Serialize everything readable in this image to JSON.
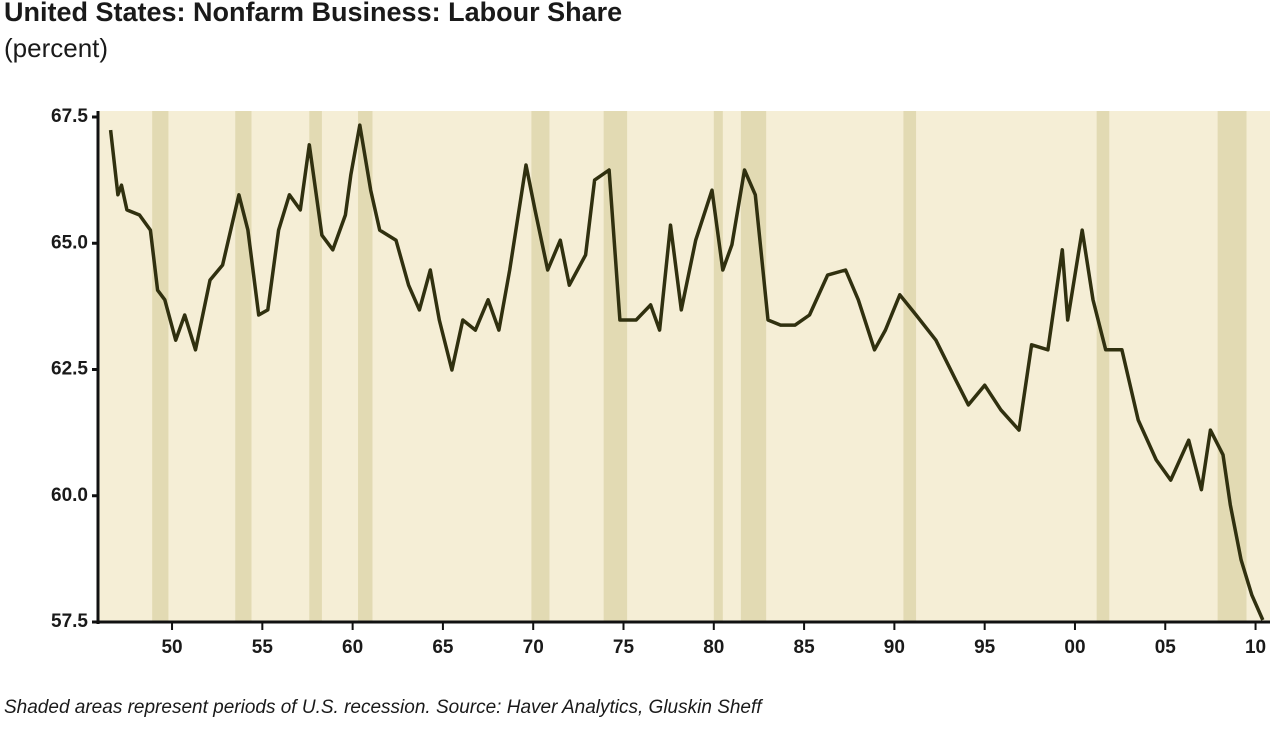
{
  "chart_data": {
    "type": "line",
    "title": "United States: Nonfarm Business: Labour Share",
    "subtitle": "(percent)",
    "footnote": "Shaded areas represent periods of U.S. recession. Source: Haver Analytics, Gluskin Sheff",
    "x": [
      1946.6,
      1947.0,
      1947.2,
      1947.5,
      1948.2,
      1948.8,
      1949.2,
      1949.6,
      1950.2,
      1950.7,
      1951.3,
      1952.1,
      1952.8,
      1953.7,
      1954.2,
      1954.8,
      1955.3,
      1955.9,
      1956.5,
      1957.1,
      1957.6,
      1958.3,
      1958.9,
      1959.6,
      1959.9,
      1960.4,
      1961.0,
      1961.5,
      1962.4,
      1963.1,
      1963.7,
      1964.3,
      1964.8,
      1965.5,
      1966.1,
      1966.8,
      1967.5,
      1968.1,
      1968.7,
      1969.6,
      1970.1,
      1970.8,
      1971.5,
      1972.0,
      1972.9,
      1973.4,
      1974.2,
      1974.8,
      1975.7,
      1976.5,
      1977.0,
      1977.6,
      1978.2,
      1979.0,
      1979.9,
      1980.5,
      1981.0,
      1981.7,
      1982.3,
      1983.0,
      1983.7,
      1984.5,
      1985.3,
      1986.3,
      1987.3,
      1988.0,
      1988.9,
      1989.5,
      1990.3,
      1991.2,
      1992.3,
      1993.4,
      1994.1,
      1995.0,
      1995.9,
      1996.9,
      1997.6,
      1998.5,
      1999.3,
      1999.6,
      2000.4,
      2001.0,
      2001.7,
      2002.6,
      2003.5,
      2004.5,
      2005.3,
      2006.3,
      2007.0,
      2007.5,
      2008.2,
      2008.6,
      2009.2,
      2009.8,
      2010.4
    ],
    "series": [
      {
        "name": "Labour Share",
        "color": "#30300f",
        "values": [
          67.24,
          65.96,
          66.15,
          65.66,
          65.56,
          65.26,
          64.07,
          63.88,
          63.08,
          63.58,
          62.89,
          64.27,
          64.57,
          65.96,
          65.26,
          63.58,
          63.68,
          65.26,
          65.96,
          65.66,
          66.95,
          65.16,
          64.87,
          65.56,
          66.35,
          67.34,
          66.05,
          65.26,
          65.06,
          64.17,
          63.68,
          64.47,
          63.48,
          62.49,
          63.48,
          63.28,
          63.88,
          63.28,
          64.47,
          66.55,
          65.66,
          64.47,
          65.06,
          64.17,
          64.77,
          66.25,
          66.45,
          63.48,
          63.48,
          63.78,
          63.28,
          65.36,
          63.68,
          65.06,
          66.05,
          64.47,
          64.97,
          66.45,
          65.96,
          63.48,
          63.38,
          63.38,
          63.58,
          64.37,
          64.47,
          63.88,
          62.89,
          63.28,
          63.98,
          63.58,
          63.08,
          62.29,
          61.8,
          62.19,
          61.7,
          61.3,
          62.99,
          62.89,
          64.87,
          63.48,
          65.26,
          63.88,
          62.89,
          62.89,
          61.5,
          60.71,
          60.31,
          61.1,
          60.12,
          61.3,
          60.81,
          59.82,
          58.73,
          58.03,
          57.54
        ]
      }
    ],
    "recessions": [
      [
        1948.9,
        1949.8
      ],
      [
        1953.5,
        1954.4
      ],
      [
        1957.6,
        1958.3
      ],
      [
        1960.3,
        1961.1
      ],
      [
        1969.9,
        1970.9
      ],
      [
        1973.9,
        1975.2
      ],
      [
        1980.0,
        1980.5
      ],
      [
        1981.5,
        1982.9
      ],
      [
        1990.5,
        1991.2
      ],
      [
        2001.2,
        2001.9
      ],
      [
        2007.9,
        2009.5
      ]
    ],
    "recession_color": "#e2dab3",
    "background": "#f5eed6",
    "xlim": [
      1945.9,
      2010.8
    ],
    "ylim": [
      57.5,
      67.5
    ],
    "yticks": [
      {
        "value": 57.5,
        "label": "57.5"
      },
      {
        "value": 60,
        "label": "60.0"
      },
      {
        "value": 62.5,
        "label": "62.5"
      },
      {
        "value": 65,
        "label": "65.0"
      },
      {
        "value": 67.5,
        "label": "67.5"
      }
    ],
    "xticks": [
      {
        "value": 1950,
        "label": "50"
      },
      {
        "value": 1955,
        "label": "55"
      },
      {
        "value": 1960,
        "label": "60"
      },
      {
        "value": 1965,
        "label": "65"
      },
      {
        "value": 1970,
        "label": "70"
      },
      {
        "value": 1975,
        "label": "75"
      },
      {
        "value": 1980,
        "label": "80"
      },
      {
        "value": 1985,
        "label": "85"
      },
      {
        "value": 1990,
        "label": "90"
      },
      {
        "value": 1995,
        "label": "95"
      },
      {
        "value": 2000,
        "label": "00"
      },
      {
        "value": 2005,
        "label": "05"
      },
      {
        "value": 2010,
        "label": "10"
      }
    ]
  }
}
